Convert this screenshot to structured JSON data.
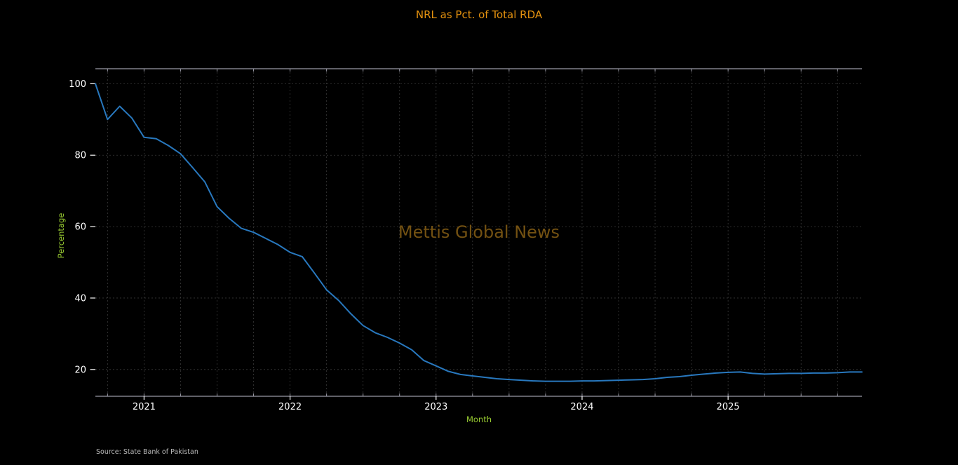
{
  "title": "NRL as Pct. of Total RDA",
  "watermark": "Mettis Global News",
  "source_note": "Source: State Bank of Pakistan",
  "colors": {
    "background": "#000000",
    "title": "#e5920f",
    "axis_label": "#9acd32",
    "tick_label": "#ffffff",
    "line": "#2878be",
    "spine": "#9a9aa6",
    "grid": "#3a3a3a",
    "watermark": "#7a5613",
    "source": "#b9b9b9"
  },
  "chart_data": {
    "type": "line",
    "title": "NRL as Pct. of Total RDA",
    "xlabel": "Month",
    "ylabel": "Percentage",
    "series_name": "NRL as Pct. of Total RDA",
    "x": [
      "2020-09",
      "2020-10",
      "2020-11",
      "2020-12",
      "2021-01",
      "2021-02",
      "2021-03",
      "2021-04",
      "2021-05",
      "2021-06",
      "2021-07",
      "2021-08",
      "2021-09",
      "2021-10",
      "2021-11",
      "2021-12",
      "2022-01",
      "2022-02",
      "2022-03",
      "2022-04",
      "2022-05",
      "2022-06",
      "2022-07",
      "2022-08",
      "2022-09",
      "2022-10",
      "2022-11",
      "2022-12",
      "2023-01",
      "2023-02",
      "2023-03",
      "2023-04",
      "2023-05",
      "2023-06",
      "2023-07",
      "2023-08",
      "2023-09",
      "2023-10",
      "2023-11",
      "2023-12",
      "2024-01",
      "2024-02",
      "2024-03",
      "2024-04",
      "2024-05",
      "2024-06",
      "2024-07",
      "2024-08",
      "2024-09",
      "2024-10",
      "2024-11",
      "2024-12",
      "2025-01",
      "2025-02",
      "2025-03",
      "2025-04",
      "2025-05",
      "2025-06",
      "2025-07",
      "2025-08",
      "2025-09",
      "2025-10",
      "2025-11",
      "2025-12"
    ],
    "values": [
      100.0,
      90.0,
      93.7,
      90.4,
      85.0,
      84.6,
      82.7,
      80.4,
      76.5,
      72.5,
      65.6,
      62.3,
      59.5,
      58.4,
      56.7,
      55.0,
      52.8,
      51.6,
      47.0,
      42.3,
      39.3,
      35.6,
      32.3,
      30.3,
      29.0,
      27.4,
      25.5,
      22.5,
      21.0,
      19.5,
      18.6,
      18.2,
      17.8,
      17.4,
      17.2,
      17.0,
      16.8,
      16.7,
      16.7,
      16.7,
      16.8,
      16.8,
      16.9,
      17.0,
      17.1,
      17.2,
      17.4,
      17.8,
      18.0,
      18.4,
      18.7,
      19.0,
      19.2,
      19.3,
      18.9,
      18.7,
      18.8,
      18.9,
      18.9,
      19.0,
      19.0,
      19.1,
      19.3,
      19.3
    ],
    "x_tick_labels": [
      "2021",
      "2022",
      "2023",
      "2024",
      "2025"
    ],
    "y_ticks": [
      20,
      40,
      60,
      80,
      100
    ],
    "ylim": [
      12.5,
      104.2
    ],
    "grid": true,
    "grid_minor_x": "quarterly",
    "legend": false
  }
}
